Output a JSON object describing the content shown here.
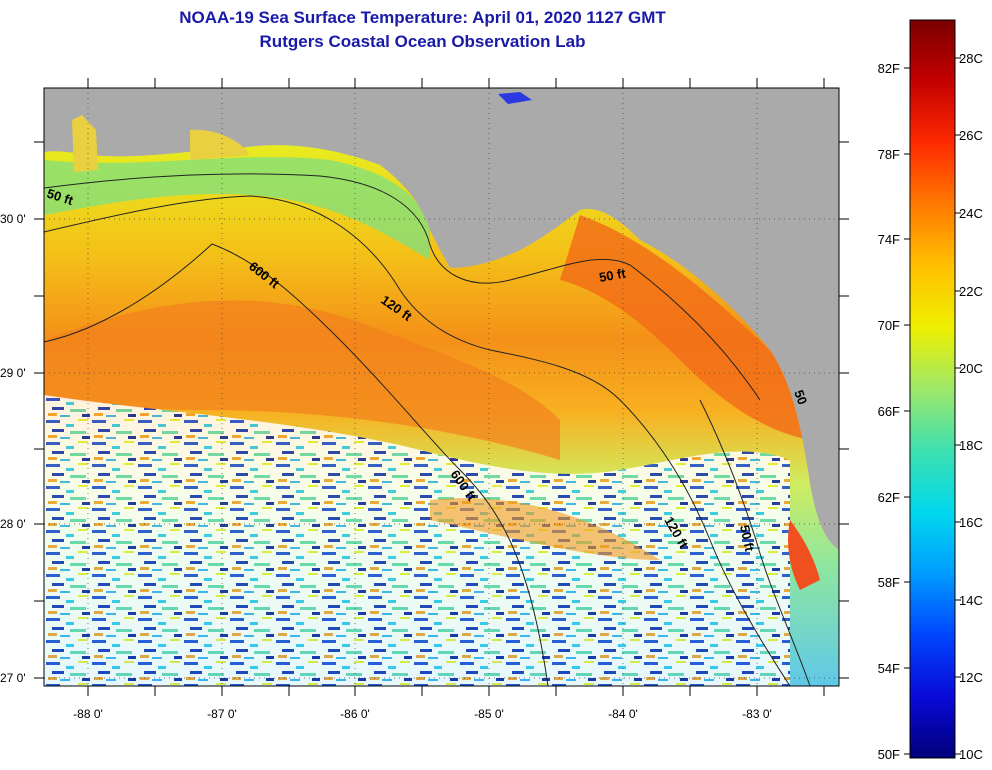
{
  "title": "NOAA-19 Sea Surface Temperature:  April 01, 2020 1127 GMT",
  "subtitle": "Rutgers Coastal Ocean Observation Lab",
  "map": {
    "lon_range": [
      -88.35,
      -82.45
    ],
    "lat_range": [
      26.95,
      30.85
    ],
    "lon_ticks": [
      "-88 0'",
      "-87 0'",
      "-86 0'",
      "-85 0'",
      "-84 0'",
      "-83 0'"
    ],
    "lat_ticks": [
      "30 0'",
      "29 0'",
      "28 0'",
      "27 0'"
    ],
    "grid": "dotted",
    "land_color": "#aaaaaa",
    "contour_labels": [
      "50 ft",
      "600 ft",
      "120 ft",
      "50 ft",
      "600 ft",
      "120 ft",
      "50 ft",
      "50"
    ]
  },
  "colorbar": {
    "fahrenheit_labels": [
      "82F",
      "78F",
      "74F",
      "70F",
      "66F",
      "62F",
      "58F",
      "54F",
      "50F"
    ],
    "celsius_labels": [
      "28C",
      "26C",
      "24C",
      "22C",
      "20C",
      "18C",
      "16C",
      "14C",
      "12C",
      "10C"
    ],
    "colors": [
      "#7a0000",
      "#c40000",
      "#ff2a00",
      "#ff7a00",
      "#ffc000",
      "#eef000",
      "#9ee86a",
      "#3ee0b0",
      "#00d8ee",
      "#009cff",
      "#0046ff",
      "#0a0ad8",
      "#00007a"
    ]
  }
}
